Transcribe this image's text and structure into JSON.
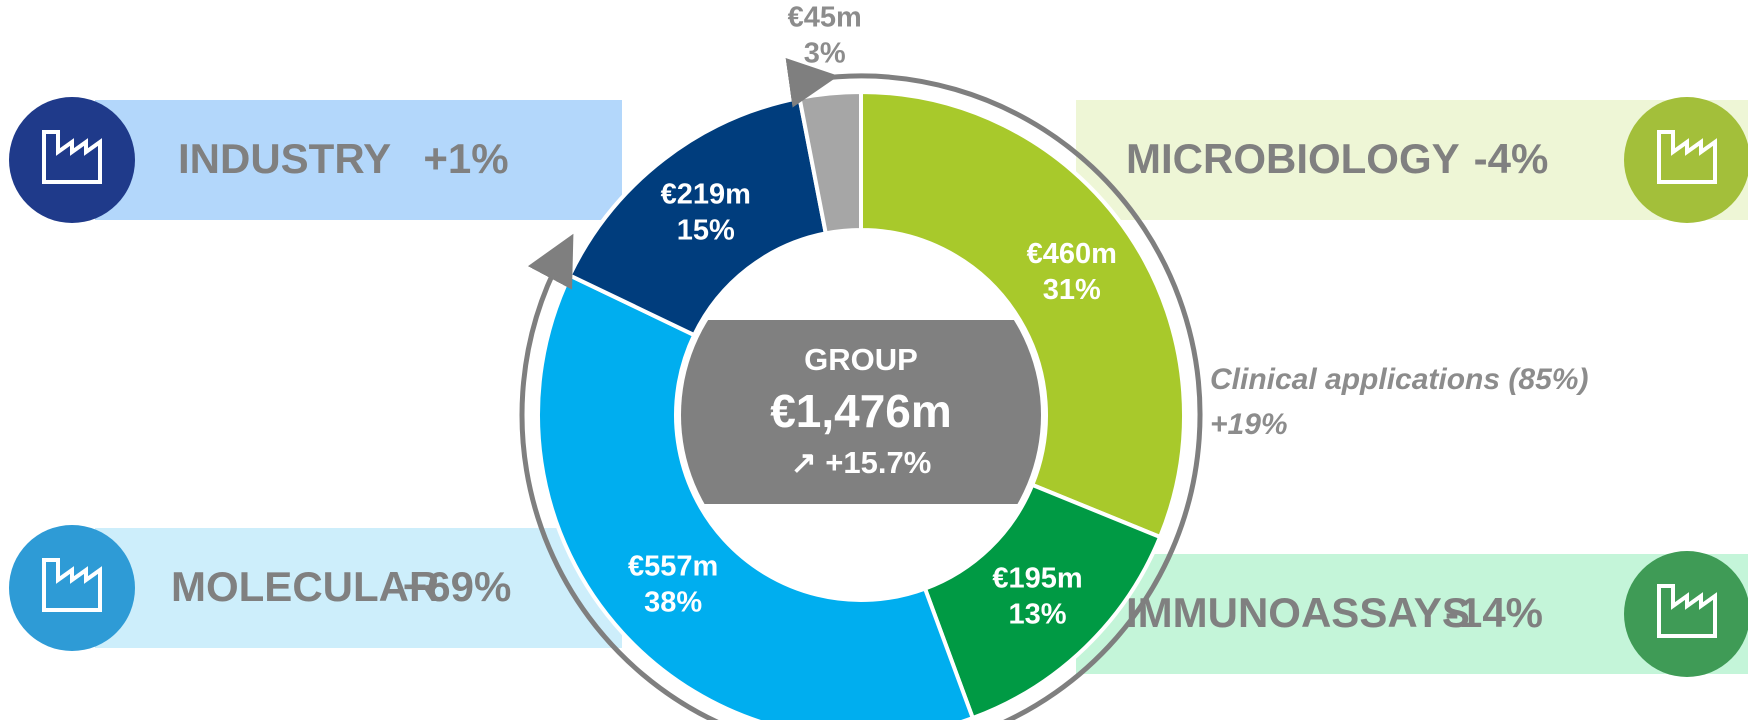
{
  "chart_data": {
    "type": "donut",
    "categories": [
      "MICROBIOLOGY",
      "IMMUNOASSAYS",
      "MOLECULAR",
      "INDUSTRY",
      null
    ],
    "values": [
      460,
      195,
      557,
      219,
      45
    ],
    "value_labels": [
      "€460m",
      "€195m",
      "€557m",
      "€219m",
      "€45m"
    ],
    "share_labels": [
      "31%",
      "13%",
      "38%",
      "15%",
      "3%"
    ],
    "growth_labels": [
      "-4%",
      "-14%",
      "+69%",
      "+1%",
      null
    ],
    "colors": [
      "#a8c92b",
      "#009a44",
      "#00aeef",
      "#003d7d",
      "#a6a6a6"
    ],
    "center": {
      "title": "GROUP",
      "total_label": "€1,476m",
      "change_label": "↗ +15.7%"
    },
    "annotation": {
      "text": "Clinical applications (85%)",
      "change": "+19%"
    }
  }
}
